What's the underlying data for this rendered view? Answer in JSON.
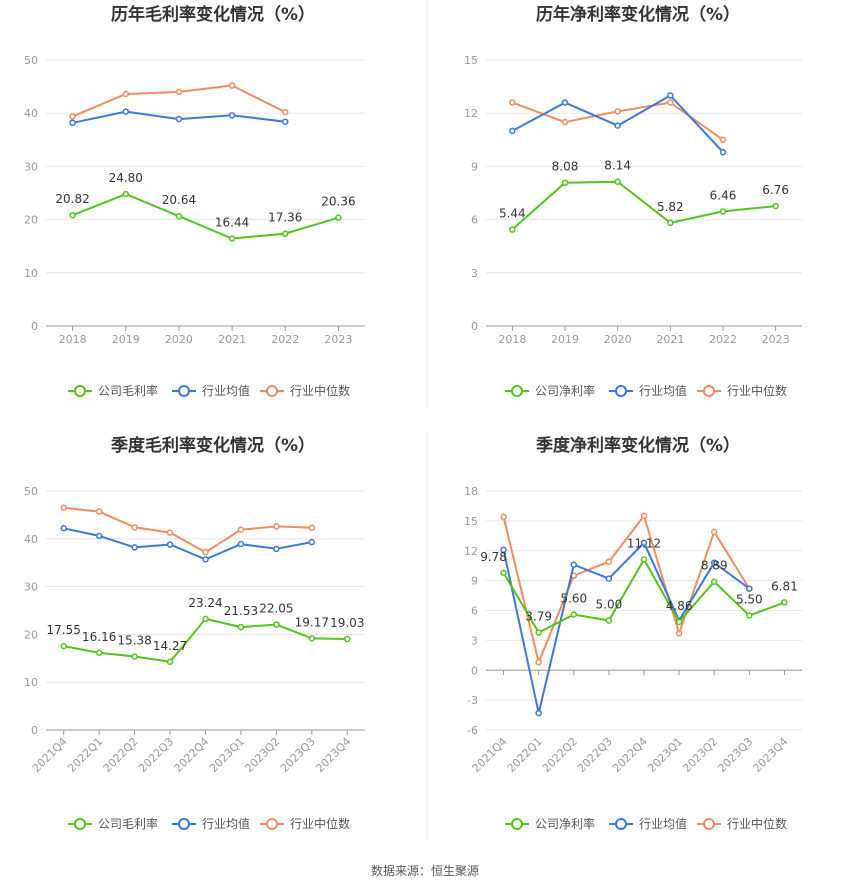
{
  "footer": {
    "source": "数据来源：恒生聚源"
  },
  "colors": {
    "company": "#52c41a",
    "industry_avg": "#3a78dc",
    "industry_median": "#f08c5e"
  },
  "chart_data": [
    {
      "type": "line",
      "title": "历年毛利率变化情况（%）",
      "categories": [
        "2018",
        "2019",
        "2020",
        "2021",
        "2022",
        "2023"
      ],
      "ylim": [
        0,
        50
      ],
      "yticks": [
        0,
        10,
        20,
        30,
        40,
        50
      ],
      "legend_position": "bottom",
      "series": [
        {
          "name": "公司毛利率",
          "values": [
            20.82,
            24.8,
            20.64,
            16.44,
            17.36,
            20.36
          ],
          "labels": [
            "20.82",
            "24.80",
            "20.64",
            "16.44",
            "17.36",
            "20.36"
          ]
        },
        {
          "name": "行业均值",
          "values": [
            38.2,
            40.3,
            38.9,
            39.6,
            38.4,
            null
          ]
        },
        {
          "name": "行业中位数",
          "values": [
            39.4,
            43.6,
            44.0,
            45.2,
            40.2,
            null
          ]
        }
      ]
    },
    {
      "type": "line",
      "title": "历年净利率变化情况（%）",
      "categories": [
        "2018",
        "2019",
        "2020",
        "2021",
        "2022",
        "2023"
      ],
      "ylim": [
        0,
        15
      ],
      "yticks": [
        0,
        3,
        6,
        9,
        12,
        15
      ],
      "legend_position": "bottom",
      "series": [
        {
          "name": "公司净利率",
          "values": [
            5.44,
            8.08,
            8.14,
            5.82,
            6.46,
            6.76
          ],
          "labels": [
            "5.44",
            "8.08",
            "8.14",
            "5.82",
            "6.46",
            "6.76"
          ]
        },
        {
          "name": "行业均值",
          "values": [
            11.0,
            12.6,
            11.3,
            13.0,
            9.8,
            null
          ]
        },
        {
          "name": "行业中位数",
          "values": [
            12.6,
            11.5,
            12.1,
            12.6,
            10.5,
            null
          ]
        }
      ]
    },
    {
      "type": "line",
      "title": "季度毛利率变化情况（%）",
      "categories": [
        "2021Q4",
        "2022Q1",
        "2022Q2",
        "2022Q3",
        "2022Q4",
        "2023Q1",
        "2023Q2",
        "2023Q3",
        "2023Q4"
      ],
      "ylim": [
        0,
        50
      ],
      "yticks": [
        0,
        10,
        20,
        30,
        40,
        50
      ],
      "legend_position": "bottom",
      "series": [
        {
          "name": "公司毛利率",
          "values": [
            17.55,
            16.16,
            15.38,
            14.27,
            23.24,
            21.53,
            22.05,
            19.17,
            19.03
          ],
          "labels": [
            "17.55",
            "16.16",
            "15.38",
            "14.27",
            "23.24",
            "21.53",
            "22.05",
            "19.17",
            "19.03"
          ]
        },
        {
          "name": "行业均值",
          "values": [
            42.2,
            40.6,
            38.2,
            38.8,
            35.7,
            38.9,
            37.9,
            39.3,
            null
          ]
        },
        {
          "name": "行业中位数",
          "values": [
            46.5,
            45.7,
            42.4,
            41.3,
            37.2,
            41.9,
            42.6,
            42.3,
            null
          ]
        }
      ]
    },
    {
      "type": "line",
      "title": "季度净利率变化情况（%）",
      "categories": [
        "2021Q4",
        "2022Q1",
        "2022Q2",
        "2022Q3",
        "2022Q4",
        "2023Q1",
        "2023Q2",
        "2023Q3",
        "2023Q4"
      ],
      "ylim": [
        -6,
        18
      ],
      "yticks": [
        -6,
        -3,
        0,
        3,
        6,
        9,
        12,
        15,
        18
      ],
      "legend_position": "bottom",
      "series": [
        {
          "name": "公司净利率",
          "values": [
            9.78,
            3.79,
            5.6,
            5.0,
            11.12,
            4.86,
            8.89,
            5.5,
            6.81
          ],
          "labels": [
            "9.78",
            "3.79",
            "5.60",
            "5.00",
            "11.12",
            "4.86",
            "8.89",
            "5.50",
            "6.81"
          ]
        },
        {
          "name": "行业均值",
          "values": [
            12.1,
            -4.3,
            10.6,
            9.2,
            12.8,
            5.0,
            10.8,
            8.2,
            null
          ]
        },
        {
          "name": "行业中位数",
          "values": [
            15.4,
            0.8,
            9.5,
            10.9,
            15.5,
            3.7,
            13.9,
            8.2,
            null
          ]
        }
      ]
    }
  ]
}
